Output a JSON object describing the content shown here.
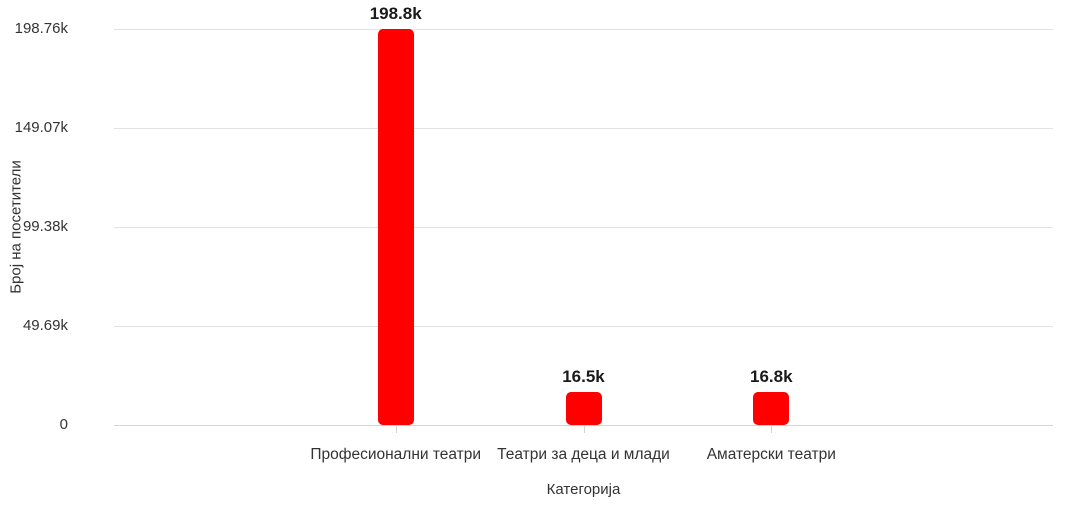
{
  "chart": {
    "background_color": "#ffffff",
    "bar_color": "#ff0000",
    "grid_color": "#e2e2e2",
    "axis_line_color": "#d4d4d4",
    "tick_text_color": "#333333",
    "value_label_color": "#1a1a1a"
  },
  "chart_data": {
    "type": "bar",
    "title": "",
    "xlabel": "Категорија",
    "ylabel": "Број на посетители",
    "categories": [
      "Професионални театри",
      "Театри за деца и млади",
      "Аматерски театри"
    ],
    "values": [
      198760,
      16500,
      16800
    ],
    "value_labels": [
      "198.8k",
      "16.5k",
      "16.8k"
    ],
    "ylim": [
      0,
      198760
    ],
    "y_ticks": [
      {
        "value": 0,
        "label": "0"
      },
      {
        "value": 49690,
        "label": "49.69k"
      },
      {
        "value": 99380,
        "label": "99.38k"
      },
      {
        "value": 149070,
        "label": "149.07k"
      },
      {
        "value": 198760,
        "label": "198.76k"
      }
    ],
    "grid": true,
    "legend": false,
    "series_color": "#ff0000"
  }
}
